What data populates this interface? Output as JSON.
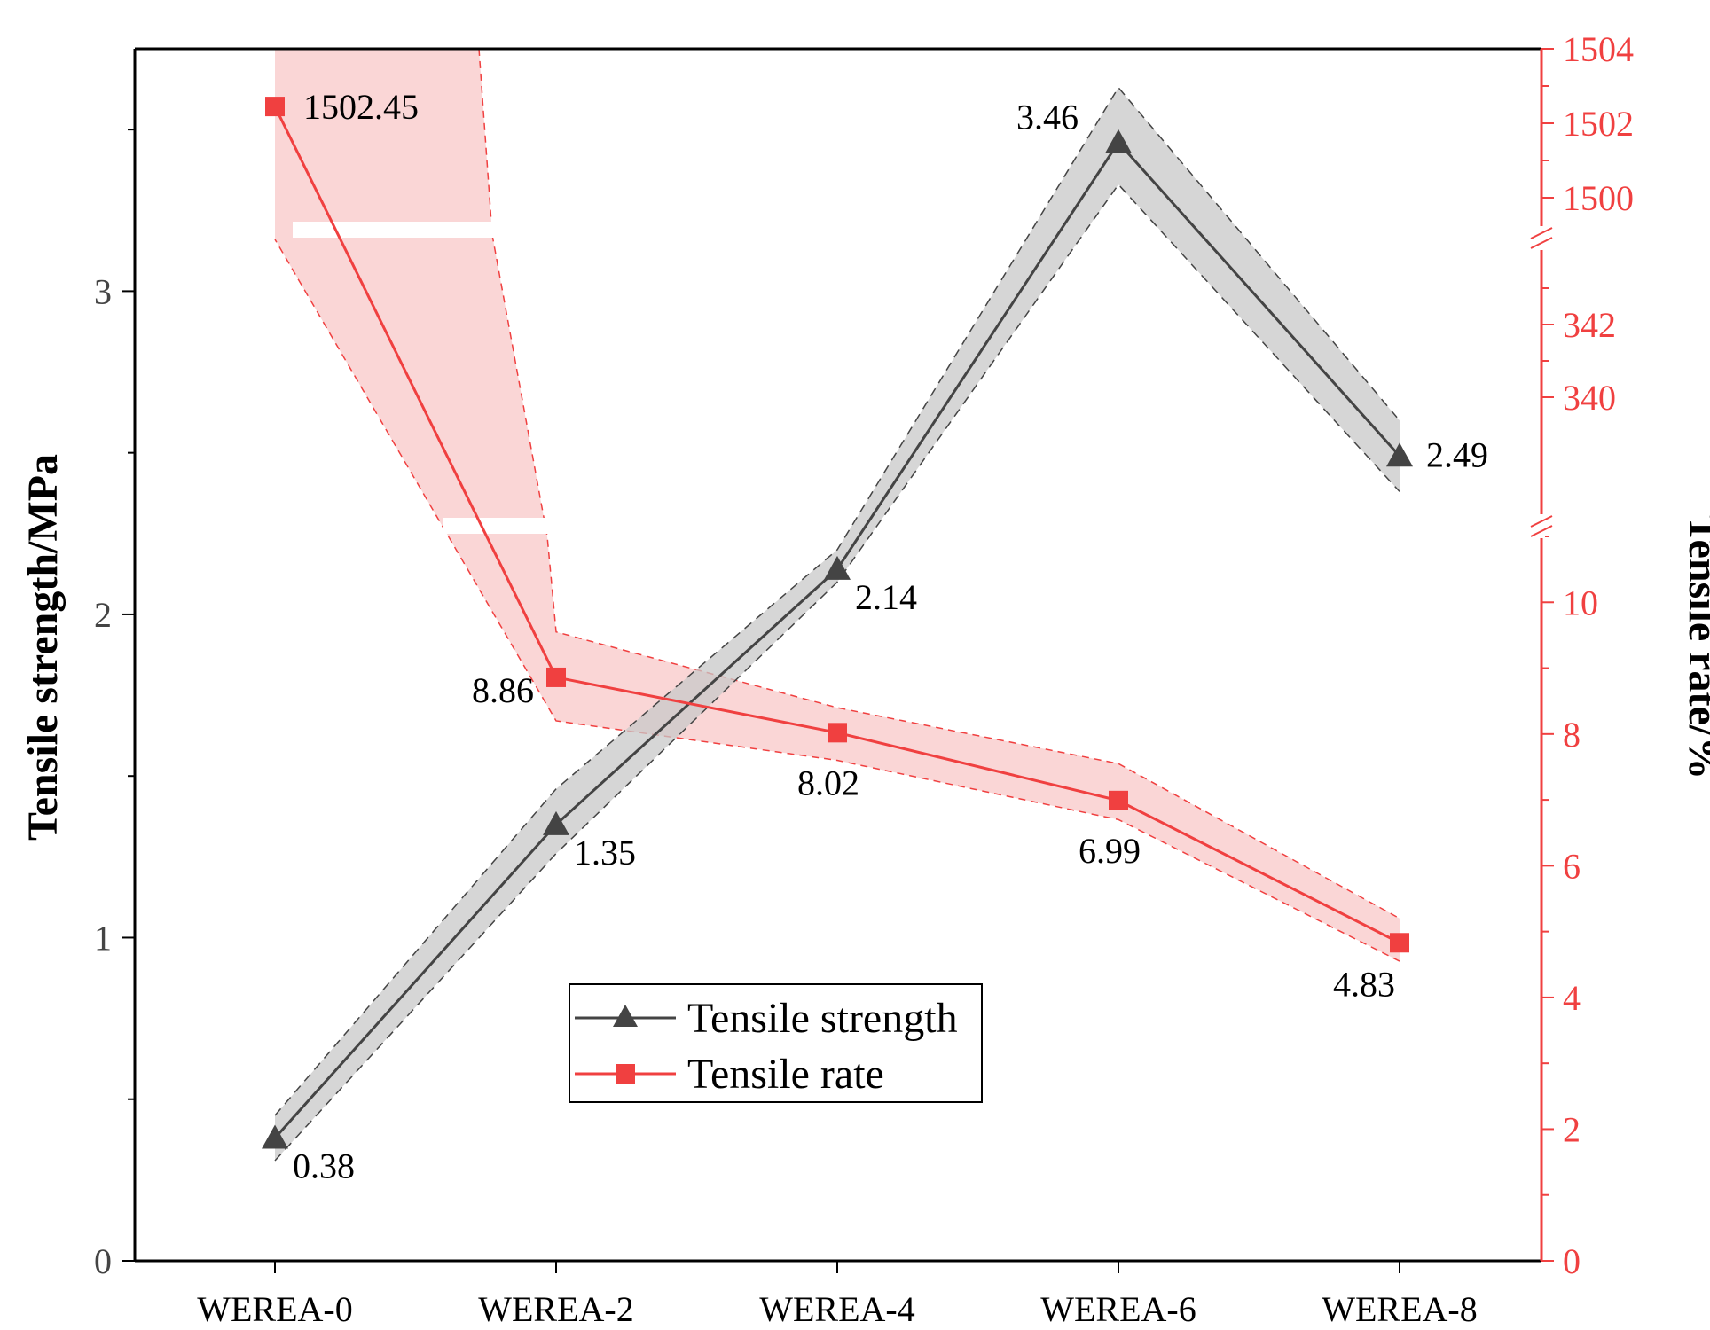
{
  "chart_data": {
    "type": "line",
    "categories": [
      "WEREA-0",
      "WEREA-2",
      "WEREA-4",
      "WEREA-6",
      "WEREA-8"
    ],
    "series": [
      {
        "name": "Tensile strength",
        "axis": "left",
        "marker": "triangle",
        "color": "#444444",
        "band_color": "#c8c8c8",
        "values": [
          0.38,
          1.35,
          2.14,
          3.46,
          2.49
        ],
        "band_lower": [
          0.31,
          1.26,
          2.1,
          3.33,
          2.38
        ],
        "band_upper": [
          0.45,
          1.46,
          2.2,
          3.63,
          2.6
        ],
        "labels": [
          "0.38",
          "1.35",
          "2.14",
          "3.46",
          "2.49"
        ]
      },
      {
        "name": "Tensile rate",
        "axis": "right",
        "marker": "square",
        "color": "#f04040",
        "band_color": "#f8c0c0",
        "values": [
          1502.45,
          8.86,
          8.02,
          6.99,
          4.83
        ],
        "band_lower": [
          1499.0,
          8.2,
          7.6,
          6.7,
          4.55
        ],
        "band_upper": [
          1504.0,
          9.55,
          8.4,
          7.55,
          5.2
        ],
        "labels": [
          "1502.45",
          "8.86",
          "8.02",
          "6.99",
          "4.83"
        ]
      }
    ],
    "y_left": {
      "label": "Tensile strength/MPa",
      "ylim": [
        0,
        3.75
      ],
      "ticks": [
        0,
        1,
        2,
        3
      ],
      "tick_labels": [
        "0",
        "1",
        "2",
        "3"
      ]
    },
    "y_right": {
      "label": "Tensile rate/%",
      "broken": true,
      "segments": [
        {
          "range": [
            0,
            11
          ],
          "ticks": [
            0,
            2,
            4,
            6,
            8,
            10
          ],
          "tick_labels": [
            "0",
            "2",
            "4",
            "6",
            "8",
            "10"
          ]
        },
        {
          "range": [
            338,
            343
          ],
          "ticks": [
            340,
            342
          ],
          "tick_labels": [
            "340",
            "342"
          ]
        },
        {
          "range": [
            1499,
            1504
          ],
          "ticks": [
            1500,
            1502,
            1504
          ],
          "tick_labels": [
            "1500",
            "1502",
            "1504"
          ]
        }
      ]
    },
    "legend": {
      "position": "bottom-center",
      "entries": [
        "Tensile strength",
        "Tensile rate"
      ]
    },
    "grid": false,
    "title": ""
  }
}
